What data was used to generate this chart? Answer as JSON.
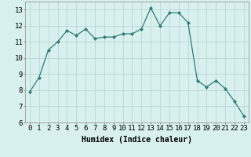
{
  "x": [
    0,
    1,
    2,
    3,
    4,
    5,
    6,
    7,
    8,
    9,
    10,
    11,
    12,
    13,
    14,
    15,
    16,
    17,
    18,
    19,
    20,
    21,
    22,
    23
  ],
  "y": [
    7.9,
    8.8,
    10.5,
    11.0,
    11.7,
    11.4,
    11.8,
    11.2,
    11.3,
    11.3,
    11.5,
    11.5,
    11.8,
    13.1,
    12.0,
    12.8,
    12.8,
    12.2,
    8.6,
    8.2,
    8.6,
    8.1,
    7.3,
    6.4
  ],
  "xlabel": "Humidex (Indice chaleur)",
  "ylim": [
    6,
    13.5
  ],
  "xlim": [
    -0.5,
    23.5
  ],
  "yticks": [
    6,
    7,
    8,
    9,
    10,
    11,
    12,
    13
  ],
  "xticks": [
    0,
    1,
    2,
    3,
    4,
    5,
    6,
    7,
    8,
    9,
    10,
    11,
    12,
    13,
    14,
    15,
    16,
    17,
    18,
    19,
    20,
    21,
    22,
    23
  ],
  "line_color": "#2d7d74",
  "marker_color": "#2d7d74",
  "bg_color": "#d8f0ee",
  "grid_color": "#b8d8d4",
  "axis_label_fontsize": 7.0,
  "tick_fontsize": 6.5
}
